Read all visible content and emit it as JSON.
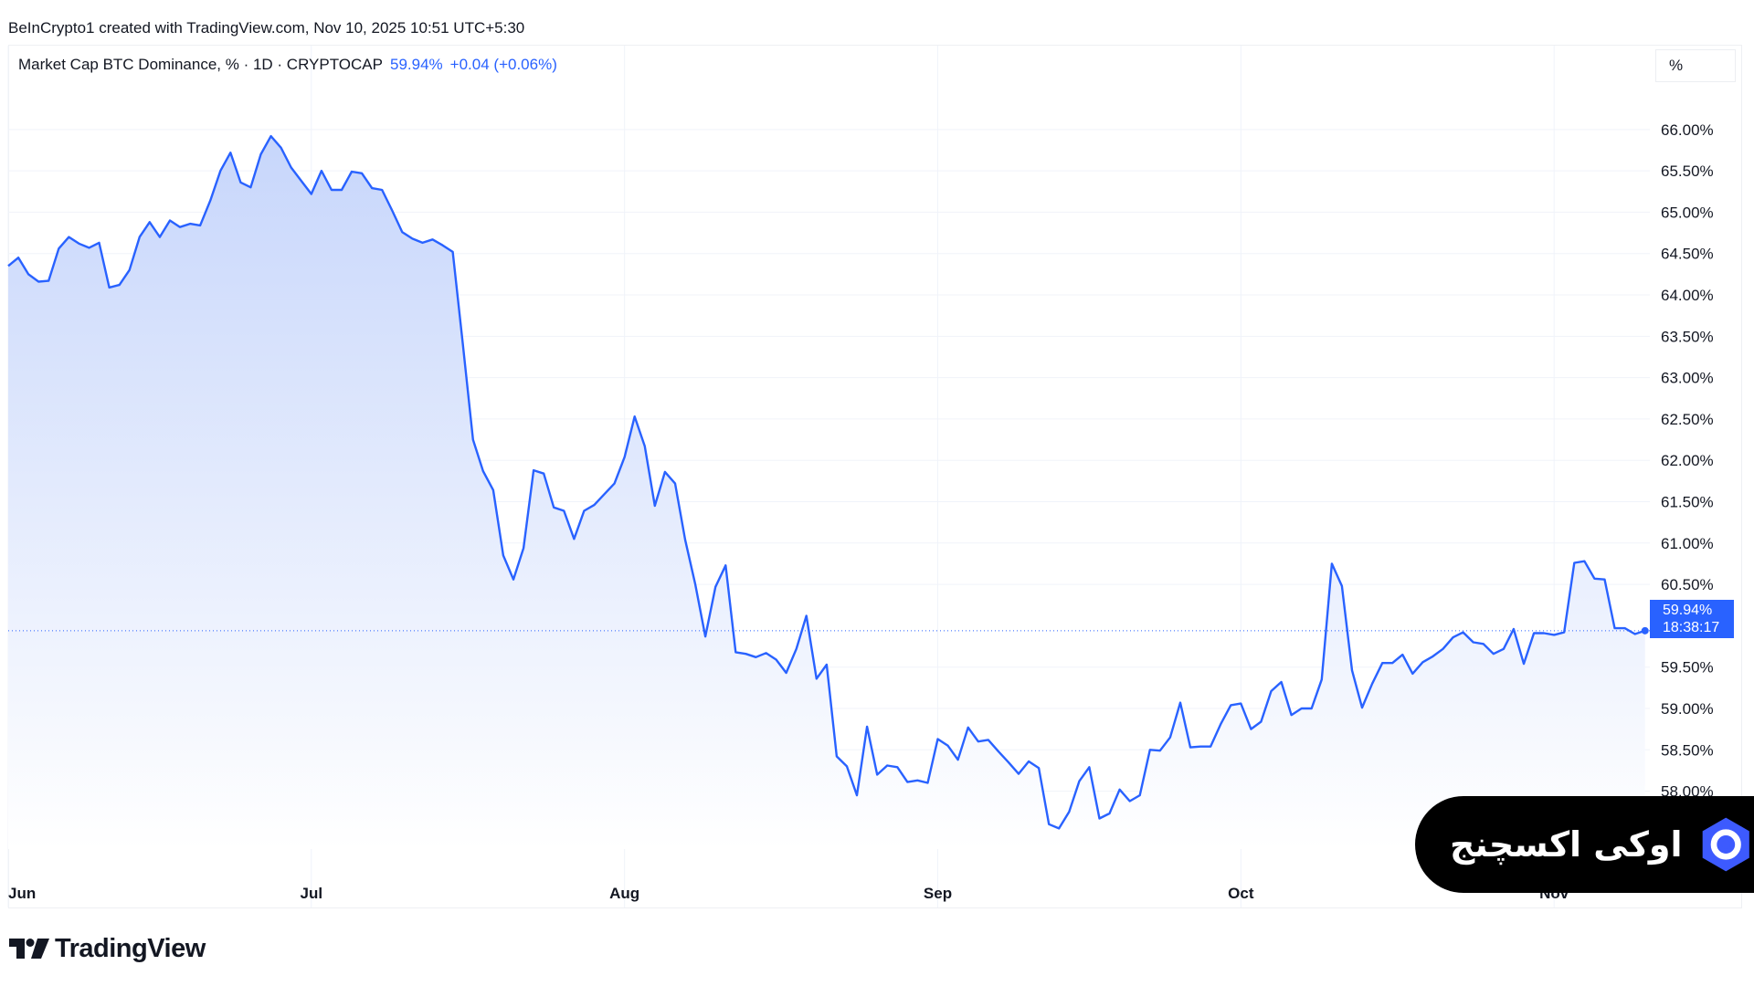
{
  "header": {
    "credit": "BeInCrypto1 created with TradingView.com, Nov 10, 2025 10:51 UTC+5:30"
  },
  "legend": {
    "symbol": "Market Cap BTC Dominance, % · 1D · CRYPTOCAP",
    "last": "59.94%",
    "change": "+0.04 (+0.06%)"
  },
  "scale_button": {
    "label": "%"
  },
  "price_tag": {
    "value": "59.94%",
    "countdown": "18:38:17"
  },
  "branding": {
    "wordmark": "TradingView"
  },
  "watermark": {
    "text": "اوکی اکسچنج"
  },
  "colors": {
    "line": "#2962ff",
    "area_top": "#c7d6fb",
    "area_bottom": "#ffffff",
    "grid": "#f0f3fa",
    "text": "#131722"
  },
  "chart_data": {
    "type": "area",
    "title": "Market Cap BTC Dominance, %",
    "ylabel": "%",
    "ylim": [
      57.3,
      66.55
    ],
    "y_ticks": [
      "66.00%",
      "65.50%",
      "65.00%",
      "64.50%",
      "64.00%",
      "63.50%",
      "63.00%",
      "62.50%",
      "62.00%",
      "61.50%",
      "61.00%",
      "60.50%",
      "59.50%",
      "59.00%",
      "58.50%",
      "58.00%"
    ],
    "x_ticks": [
      {
        "label": "Jun",
        "date": "2025-06-01"
      },
      {
        "label": "Jul",
        "date": "2025-07-01"
      },
      {
        "label": "Aug",
        "date": "2025-08-01"
      },
      {
        "label": "Sep",
        "date": "2025-09-01"
      },
      {
        "label": "Oct",
        "date": "2025-10-01"
      },
      {
        "label": "Nov",
        "date": "2025-11-01"
      }
    ],
    "grid": true,
    "last_value": 59.94,
    "series": [
      {
        "points": [
          [
            "2025-06-01",
            64.35
          ],
          [
            "2025-06-02",
            64.45
          ],
          [
            "2025-06-03",
            64.25
          ],
          [
            "2025-06-04",
            64.16
          ],
          [
            "2025-06-05",
            64.17
          ],
          [
            "2025-06-06",
            64.56
          ],
          [
            "2025-06-07",
            64.7
          ],
          [
            "2025-06-08",
            64.62
          ],
          [
            "2025-06-09",
            64.57
          ],
          [
            "2025-06-10",
            64.63
          ],
          [
            "2025-06-11",
            64.09
          ],
          [
            "2025-06-12",
            64.12
          ],
          [
            "2025-06-13",
            64.3
          ],
          [
            "2025-06-14",
            64.7
          ],
          [
            "2025-06-15",
            64.88
          ],
          [
            "2025-06-16",
            64.7
          ],
          [
            "2025-06-17",
            64.9
          ],
          [
            "2025-06-18",
            64.82
          ],
          [
            "2025-06-19",
            64.86
          ],
          [
            "2025-06-20",
            64.84
          ],
          [
            "2025-06-21",
            65.14
          ],
          [
            "2025-06-22",
            65.5
          ],
          [
            "2025-06-23",
            65.72
          ],
          [
            "2025-06-24",
            65.36
          ],
          [
            "2025-06-25",
            65.3
          ],
          [
            "2025-06-26",
            65.7
          ],
          [
            "2025-06-27",
            65.92
          ],
          [
            "2025-06-28",
            65.78
          ],
          [
            "2025-06-29",
            65.54
          ],
          [
            "2025-06-30",
            65.38
          ],
          [
            "2025-07-01",
            65.22
          ],
          [
            "2025-07-02",
            65.5
          ],
          [
            "2025-07-03",
            65.27
          ],
          [
            "2025-07-04",
            65.27
          ],
          [
            "2025-07-05",
            65.49
          ],
          [
            "2025-07-06",
            65.47
          ],
          [
            "2025-07-07",
            65.29
          ],
          [
            "2025-07-08",
            65.27
          ],
          [
            "2025-07-09",
            65.02
          ],
          [
            "2025-07-10",
            64.76
          ],
          [
            "2025-07-11",
            64.68
          ],
          [
            "2025-07-12",
            64.63
          ],
          [
            "2025-07-13",
            64.67
          ],
          [
            "2025-07-14",
            64.6
          ],
          [
            "2025-07-15",
            64.52
          ],
          [
            "2025-07-16",
            63.4
          ],
          [
            "2025-07-17",
            62.25
          ],
          [
            "2025-07-18",
            61.87
          ],
          [
            "2025-07-19",
            61.64
          ],
          [
            "2025-07-20",
            60.85
          ],
          [
            "2025-07-21",
            60.56
          ],
          [
            "2025-07-22",
            60.94
          ],
          [
            "2025-07-23",
            61.88
          ],
          [
            "2025-07-24",
            61.84
          ],
          [
            "2025-07-25",
            61.43
          ],
          [
            "2025-07-26",
            61.39
          ],
          [
            "2025-07-27",
            61.05
          ],
          [
            "2025-07-28",
            61.39
          ],
          [
            "2025-07-29",
            61.46
          ],
          [
            "2025-07-30",
            61.59
          ],
          [
            "2025-07-31",
            61.72
          ],
          [
            "2025-08-01",
            62.04
          ],
          [
            "2025-08-02",
            62.53
          ],
          [
            "2025-08-03",
            62.17
          ],
          [
            "2025-08-04",
            61.45
          ],
          [
            "2025-08-05",
            61.86
          ],
          [
            "2025-08-06",
            61.72
          ],
          [
            "2025-08-07",
            61.04
          ],
          [
            "2025-08-08",
            60.5
          ],
          [
            "2025-08-09",
            59.87
          ],
          [
            "2025-08-10",
            60.47
          ],
          [
            "2025-08-11",
            60.73
          ],
          [
            "2025-08-12",
            59.68
          ],
          [
            "2025-08-13",
            59.66
          ],
          [
            "2025-08-14",
            59.62
          ],
          [
            "2025-08-15",
            59.67
          ],
          [
            "2025-08-16",
            59.59
          ],
          [
            "2025-08-17",
            59.43
          ],
          [
            "2025-08-18",
            59.72
          ],
          [
            "2025-08-19",
            60.12
          ],
          [
            "2025-08-20",
            59.36
          ],
          [
            "2025-08-21",
            59.53
          ],
          [
            "2025-08-22",
            58.42
          ],
          [
            "2025-08-23",
            58.3
          ],
          [
            "2025-08-24",
            57.95
          ],
          [
            "2025-08-25",
            58.78
          ],
          [
            "2025-08-26",
            58.2
          ],
          [
            "2025-08-27",
            58.31
          ],
          [
            "2025-08-28",
            58.29
          ],
          [
            "2025-08-29",
            58.11
          ],
          [
            "2025-08-30",
            58.13
          ],
          [
            "2025-08-31",
            58.1
          ],
          [
            "2025-09-01",
            58.63
          ],
          [
            "2025-09-02",
            58.55
          ],
          [
            "2025-09-03",
            58.38
          ],
          [
            "2025-09-04",
            58.77
          ],
          [
            "2025-09-05",
            58.6
          ],
          [
            "2025-09-06",
            58.62
          ],
          [
            "2025-09-07",
            58.48
          ],
          [
            "2025-09-08",
            58.35
          ],
          [
            "2025-09-09",
            58.21
          ],
          [
            "2025-09-10",
            58.36
          ],
          [
            "2025-09-11",
            58.28
          ],
          [
            "2025-09-12",
            57.6
          ],
          [
            "2025-09-13",
            57.55
          ],
          [
            "2025-09-14",
            57.75
          ],
          [
            "2025-09-15",
            58.12
          ],
          [
            "2025-09-16",
            58.29
          ],
          [
            "2025-09-17",
            57.67
          ],
          [
            "2025-09-18",
            57.73
          ],
          [
            "2025-09-19",
            58.02
          ],
          [
            "2025-09-20",
            57.88
          ],
          [
            "2025-09-21",
            57.95
          ],
          [
            "2025-09-22",
            58.5
          ],
          [
            "2025-09-23",
            58.49
          ],
          [
            "2025-09-24",
            58.65
          ],
          [
            "2025-09-25",
            59.07
          ],
          [
            "2025-09-26",
            58.53
          ],
          [
            "2025-09-27",
            58.54
          ],
          [
            "2025-09-28",
            58.54
          ],
          [
            "2025-09-29",
            58.81
          ],
          [
            "2025-09-30",
            59.04
          ],
          [
            "2025-10-01",
            59.06
          ],
          [
            "2025-10-02",
            58.75
          ],
          [
            "2025-10-03",
            58.84
          ],
          [
            "2025-10-04",
            59.21
          ],
          [
            "2025-10-05",
            59.32
          ],
          [
            "2025-10-06",
            58.92
          ],
          [
            "2025-10-07",
            59.0
          ],
          [
            "2025-10-08",
            59.0
          ],
          [
            "2025-10-09",
            59.35
          ],
          [
            "2025-10-10",
            60.75
          ],
          [
            "2025-10-11",
            60.48
          ],
          [
            "2025-10-12",
            59.46
          ],
          [
            "2025-10-13",
            59.01
          ],
          [
            "2025-10-14",
            59.3
          ],
          [
            "2025-10-15",
            59.55
          ],
          [
            "2025-10-16",
            59.55
          ],
          [
            "2025-10-17",
            59.65
          ],
          [
            "2025-10-18",
            59.42
          ],
          [
            "2025-10-19",
            59.56
          ],
          [
            "2025-10-20",
            59.63
          ],
          [
            "2025-10-21",
            59.72
          ],
          [
            "2025-10-22",
            59.86
          ],
          [
            "2025-10-23",
            59.92
          ],
          [
            "2025-10-24",
            59.8
          ],
          [
            "2025-10-25",
            59.78
          ],
          [
            "2025-10-26",
            59.66
          ],
          [
            "2025-10-27",
            59.72
          ],
          [
            "2025-10-28",
            59.96
          ],
          [
            "2025-10-29",
            59.54
          ],
          [
            "2025-10-30",
            59.91
          ],
          [
            "2025-10-31",
            59.91
          ],
          [
            "2025-11-01",
            59.89
          ],
          [
            "2025-11-02",
            59.92
          ],
          [
            "2025-11-03",
            60.76
          ],
          [
            "2025-11-04",
            60.78
          ],
          [
            "2025-11-05",
            60.57
          ],
          [
            "2025-11-06",
            60.56
          ],
          [
            "2025-11-07",
            59.97
          ],
          [
            "2025-11-08",
            59.97
          ],
          [
            "2025-11-09",
            59.9
          ],
          [
            "2025-11-10",
            59.94
          ]
        ]
      }
    ]
  }
}
